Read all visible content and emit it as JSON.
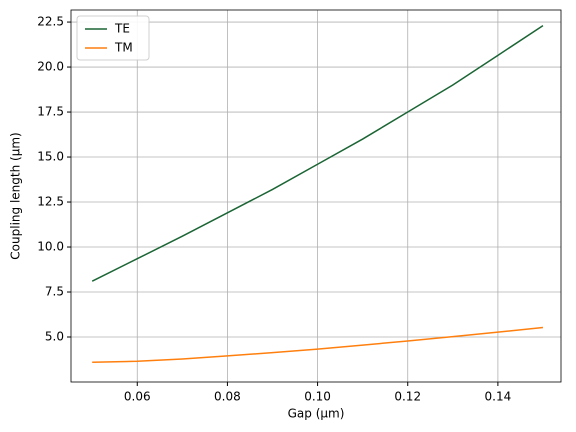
{
  "chart_data": {
    "type": "line",
    "x_label": "Gap (μm)",
    "y_label": "Coupling length (μm)",
    "x": [
      0.05,
      0.06,
      0.07,
      0.08,
      0.09,
      0.1,
      0.11,
      0.12,
      0.13,
      0.14,
      0.15
    ],
    "series": [
      {
        "name": "TE",
        "color": "#1b6535",
        "values": [
          8.1,
          9.35,
          10.6,
          11.9,
          13.2,
          14.6,
          16.0,
          17.5,
          19.0,
          20.65,
          22.3
        ]
      },
      {
        "name": "TM",
        "color": "#ff7f0e",
        "values": [
          3.6,
          3.65,
          3.78,
          3.95,
          4.13,
          4.33,
          4.55,
          4.78,
          5.02,
          5.27,
          5.53
        ]
      }
    ],
    "xlim": [
      0.0453,
      0.154
    ],
    "ylim": [
      2.5,
      23.17
    ],
    "xticks": [
      0.06,
      0.08,
      {
        "value": 0.1,
        "label": "0.10"
      },
      0.12,
      0.14
    ],
    "yticks": [
      {
        "value": 5,
        "label": "5.0"
      },
      7.5,
      {
        "value": 10,
        "label": "10.0"
      },
      12.5,
      {
        "value": 15,
        "label": "15.0"
      },
      17.5,
      {
        "value": 20,
        "label": "20.0"
      },
      22.5
    ],
    "grid": true,
    "legend": "upper-left"
  }
}
